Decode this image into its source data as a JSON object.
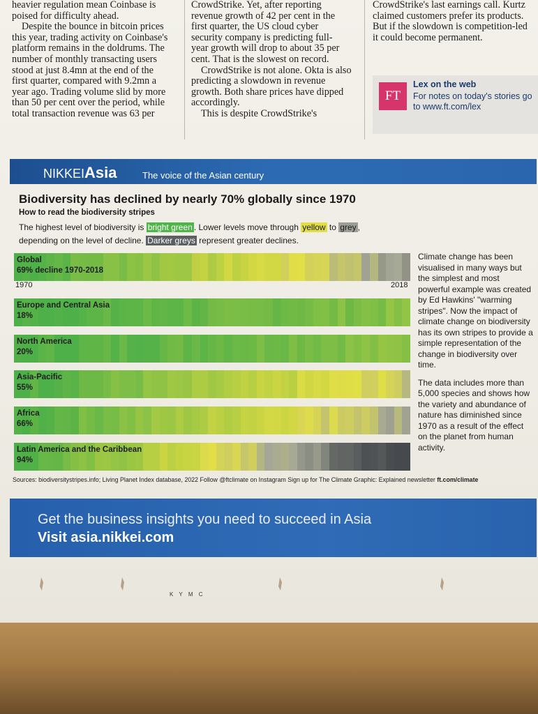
{
  "article": {
    "col1": [
      "heavier regulation mean Coinbase is",
      "poised for difficulty ahead.",
      "Despite the bounce in bitcoin prices",
      "this year, trading activity on Coinbase's",
      "platform remains in the doldrums. The",
      "number of monthly transacting users",
      "stood at just 8.4mn at the end of the",
      "first quarter, compared with 9.2mn a",
      "year ago. Trading volume slid by more",
      "than 50 per cent over the period, while",
      "total transaction revenue was 63 per"
    ],
    "col2": [
      "CrowdStrike. Yet, after reporting",
      "revenue growth of 42 per cent in the",
      "first quarter, the US cloud cyber",
      "security company is predicting full-",
      "year growth will drop to about 35 per",
      "cent. That is the slowest on record.",
      "CrowdStrike is not alone. Okta is also",
      "predicting a slowdown in revenue",
      "growth. Both share prices have dipped",
      "accordingly.",
      "This is despite CrowdStrike's"
    ],
    "col3": [
      "CrowdStrike's last earnings call. Kurtz",
      "claimed customers prefer its products.",
      "But if the slowdown is competition-led",
      "it could become permanent."
    ]
  },
  "lex_box": {
    "logo": "FT",
    "title": "Lex on the web",
    "body": "For notes on today's stories go to www.ft.com/lex"
  },
  "nikkei_band": {
    "brand_prefix": "NIKKEI",
    "brand_name": "Asia",
    "tagline": "The voice of the Asian century"
  },
  "graphic": {
    "title": "Biodiversity has declined by nearly 70% globally since 1970",
    "subtitle": "How to read the biodiversity stripes",
    "explainer": {
      "t1": "The highest level of biodiversity is ",
      "h1": "bright green",
      "t2": ". Lower levels move through ",
      "h2": "yellow",
      "t3": " to ",
      "h3": "grey",
      "t4": ", depending on the level of decline. ",
      "h4": "Darker greys",
      "t5": " represent greater declines."
    },
    "year_start": "1970",
    "year_end": "2018",
    "colors": {
      "green": "#4fb44a",
      "yellow": "#e2df44",
      "grey": "#9e9e98",
      "dark_grey": "#5b5f62"
    },
    "regions": [
      {
        "name": "Global",
        "value": "69% decline 1970-2018",
        "decline": 69
      },
      {
        "name": "Europe and Central Asia",
        "value": "18%",
        "decline": 18
      },
      {
        "name": "North America",
        "value": "20%",
        "decline": 20
      },
      {
        "name": "Asia-Pacific",
        "value": "55%",
        "decline": 55
      },
      {
        "name": "Africa",
        "value": "66%",
        "decline": 66
      },
      {
        "name": "Latin America and the Caribbean",
        "value": "94%",
        "decline": 94
      }
    ],
    "side_text": [
      "Climate change has been visualised in many ways but the simplest and most powerful example was created by Ed Hawkins' \"warming stripes\". Now the impact of climate change on biodiversity has its own stripes to provide a simple representation of the change in biodiversity over time.",
      "The data includes more than 5,000 species and shows how the variety and abundance of nature has diminished since 1970 as a result of the effect on the planet from human activity."
    ],
    "sources": "Sources: biodiversitystripes.info; Living Planet Index database, 2022   Follow @ftclimate on Instagram   Sign up for The Climate Graphic: Explained newsletter ",
    "sources_link": "ft.com/climate"
  },
  "advert": {
    "line1": "Get the business insights you need to succeed in Asia",
    "line2": "Visit asia.nikkei.com"
  },
  "print_marks": "K Y M C"
}
